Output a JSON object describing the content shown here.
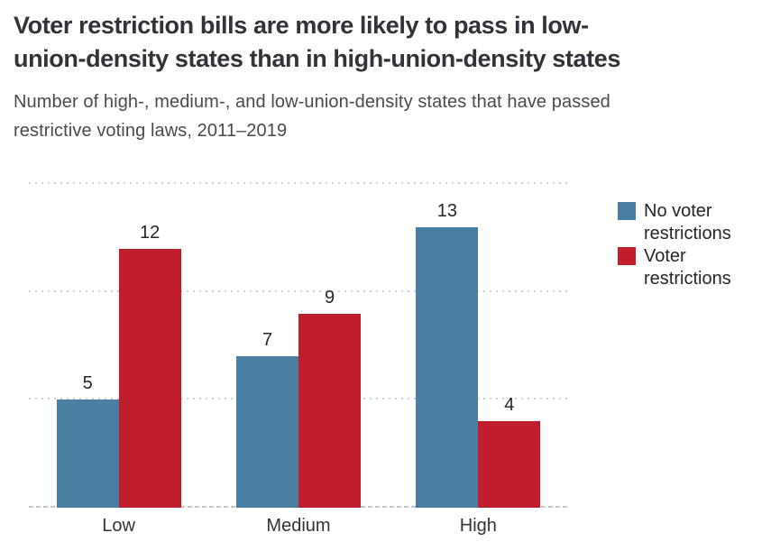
{
  "header": {
    "title_lines": [
      "Voter restriction bills are more likely to pass in low-",
      "union-density states than in high-union-density states"
    ],
    "subtitle_lines": [
      "Number of high-, medium-, and low-union-density states that have passed",
      "restrictive voting laws, 2011–2019"
    ]
  },
  "chart_data": {
    "type": "bar",
    "title": "Voter restriction bills are more likely to pass in low-union-density states than in high-union-density states",
    "subtitle": "Number of high-, medium-, and low-union-density states that have passed restrictive voting laws, 2011–2019",
    "categories": [
      "Low",
      "Medium",
      "High"
    ],
    "series": [
      {
        "name": "No voter restrictions",
        "color": "#4A7FA1",
        "values": [
          5,
          7,
          13
        ]
      },
      {
        "name": "Voter restrictions",
        "color": "#C11E2D",
        "values": [
          12,
          9,
          4
        ]
      }
    ],
    "xlabel": "",
    "ylabel": "",
    "ylim": [
      0,
      15
    ],
    "gridlines": [
      5,
      10,
      15
    ],
    "grid_style": "dotted horizontal, no y-axis tick labels",
    "legend_position": "right",
    "value_labels": true
  },
  "colors": {
    "title_text": "#303338",
    "subtitle_text": "#4a4a4f",
    "grid_line": "#d2d2d2",
    "axis_line": "#c6c6c6",
    "value_label_text": "#26262b",
    "background": "#ffffff"
  }
}
